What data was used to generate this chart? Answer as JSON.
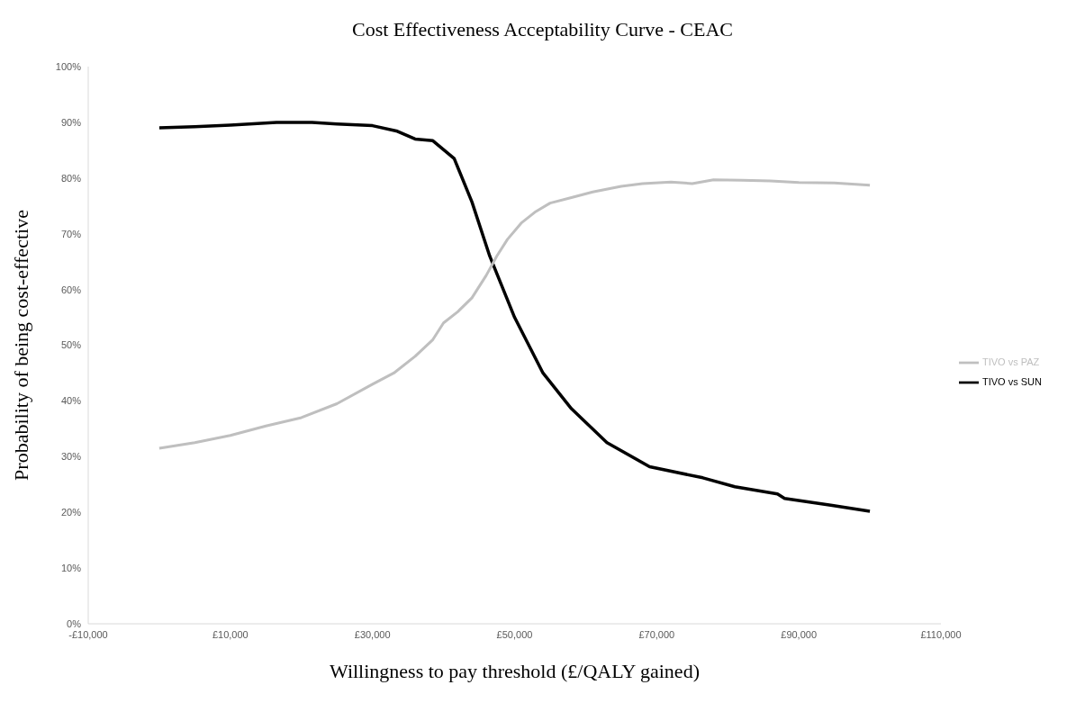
{
  "chart_data": {
    "type": "line",
    "title": "Cost Effectiveness Acceptability Curve - CEAC",
    "xlabel": "Willingness to pay threshold (£/QALY gained)",
    "ylabel": "Probability of being cost-effective",
    "xlim": [
      -10000,
      110000
    ],
    "xticks": [
      {
        "value": -10000,
        "label": "-£10,000"
      },
      {
        "value": 10000,
        "label": "£10,000"
      },
      {
        "value": 30000,
        "label": "£30,000"
      },
      {
        "value": 50000,
        "label": "£50,000"
      },
      {
        "value": 70000,
        "label": "£70,000"
      },
      {
        "value": 90000,
        "label": "£90,000"
      },
      {
        "value": 110000,
        "label": "£110,000"
      }
    ],
    "ylim": [
      0,
      100
    ],
    "yticks": [
      {
        "value": 0,
        "label": "0%"
      },
      {
        "value": 10,
        "label": "10%"
      },
      {
        "value": 20,
        "label": "20%"
      },
      {
        "value": 30,
        "label": "30%"
      },
      {
        "value": 40,
        "label": "40%"
      },
      {
        "value": 50,
        "label": "50%"
      },
      {
        "value": 60,
        "label": "60%"
      },
      {
        "value": 70,
        "label": "70%"
      },
      {
        "value": 80,
        "label": "80%"
      },
      {
        "value": 90,
        "label": "90%"
      },
      {
        "value": 100,
        "label": "100%"
      }
    ],
    "grid": false,
    "legend": "right",
    "marker": "none",
    "line_style": "solid",
    "series": [
      {
        "name": "TIVO vs SUN",
        "color": "#000000",
        "x": [
          0,
          5000,
          10000,
          16500,
          21500,
          25000,
          30000,
          33500,
          36000,
          38500,
          41500,
          44000,
          46500,
          50000,
          54000,
          58000,
          63000,
          69000,
          76500,
          81000,
          87000,
          88000,
          94500,
          100000
        ],
        "values": [
          89,
          89.2,
          89.5,
          90,
          90,
          89.7,
          89.4,
          88.4,
          87,
          86.7,
          83.5,
          75.7,
          66,
          55,
          45,
          38.6,
          32.5,
          28.2,
          26.2,
          24.6,
          23.3,
          22.5,
          21.3,
          20.2
        ]
      },
      {
        "name": "TIVO vs PAZ",
        "color": "#bfbfbf",
        "x": [
          0,
          5000,
          10000,
          15000,
          20000,
          25000,
          30000,
          33000,
          36000,
          38500,
          40000,
          42000,
          44000,
          46000,
          47500,
          49000,
          51000,
          53000,
          55000,
          58000,
          61000,
          65000,
          68000,
          72000,
          75000,
          78000,
          82000,
          86000,
          90000,
          95000,
          100000
        ],
        "values": [
          31.5,
          32.5,
          33.8,
          35.5,
          37,
          39.5,
          43,
          45,
          48,
          51,
          54,
          56,
          58.5,
          62.5,
          66,
          69,
          72,
          74,
          75.5,
          76.5,
          77.5,
          78.5,
          79,
          79.3,
          79,
          79.7,
          79.6,
          79.5,
          79.2,
          79.1,
          78.7
        ]
      }
    ]
  }
}
